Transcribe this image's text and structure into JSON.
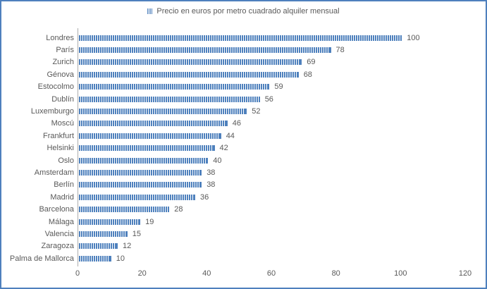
{
  "chart_data": {
    "type": "bar",
    "orientation": "horizontal",
    "legend_label": "Precio en euros por metro cuadrado alquiler mensual",
    "legend_position": "top",
    "categories": [
      "Londres",
      "París",
      "Zurich",
      "Génova",
      "Estocolmo",
      "Dublín",
      "Luxemburgo",
      "Moscú",
      "Frankfurt",
      "Helsinki",
      "Oslo",
      "Amsterdam",
      "Berlín",
      "Madrid",
      "Barcelona",
      "Málaga",
      "Valencia",
      "Zaragoza",
      "Palma de Mallorca"
    ],
    "values": [
      100,
      78,
      69,
      68,
      59,
      56,
      52,
      46,
      44,
      42,
      40,
      38,
      38,
      36,
      28,
      19,
      15,
      12,
      10
    ],
    "data_labels": [
      "100",
      "78",
      "69",
      "68",
      "59",
      "56",
      "52",
      "46",
      "44",
      "42",
      "40",
      "38",
      "38",
      "36",
      "28",
      "19",
      "15",
      "12",
      "10"
    ],
    "xlim": [
      0,
      120
    ],
    "x_ticks": [
      "0",
      "20",
      "40",
      "60",
      "80",
      "100",
      "120"
    ],
    "grid": false,
    "bar_fill_pattern": "vertical-stripes",
    "colors": {
      "bar": "#4F81BD",
      "frame_border": "#4E80BD",
      "text": "#595959",
      "axis_line": "#ACACAC"
    }
  }
}
